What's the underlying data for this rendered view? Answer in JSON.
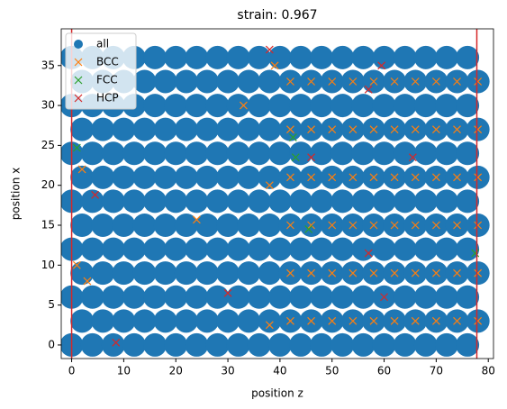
{
  "chart_data": {
    "type": "scatter",
    "title": "strain: 0.967",
    "xlabel": "position z",
    "ylabel": "position x",
    "xlim": [
      -2,
      81
    ],
    "ylim": [
      -1.7,
      39.6
    ],
    "xticks": [
      0,
      10,
      20,
      30,
      40,
      50,
      60,
      70,
      80
    ],
    "yticks": [
      0,
      5,
      10,
      15,
      20,
      25,
      30,
      35
    ],
    "vlines": [
      0,
      77.8
    ],
    "vline_color": "#d62728",
    "legend": "upper left",
    "series": [
      {
        "name": "all",
        "color": "#1f77b4",
        "marker": "o",
        "x": [
          0,
          4,
          8,
          12,
          16,
          20,
          24,
          28,
          32,
          36,
          40,
          44,
          48,
          52,
          56,
          60,
          64,
          68,
          72,
          76,
          2,
          6,
          10,
          14,
          18,
          22,
          26,
          30,
          34,
          38,
          42,
          46,
          50,
          54,
          58,
          62,
          66,
          70,
          74,
          78,
          0,
          4,
          8,
          12,
          16,
          20,
          24,
          28,
          32,
          36,
          40,
          44,
          48,
          52,
          56,
          60,
          64,
          68,
          72,
          76,
          2,
          6,
          10,
          14,
          18,
          22,
          26,
          30,
          34,
          38,
          42,
          46,
          50,
          54,
          58,
          62,
          66,
          70,
          74,
          78,
          0,
          4,
          8,
          12,
          16,
          20,
          24,
          28,
          32,
          36,
          40,
          44,
          48,
          52,
          56,
          60,
          64,
          68,
          72,
          76,
          2,
          6,
          10,
          14,
          18,
          22,
          26,
          30,
          34,
          38,
          42,
          46,
          50,
          54,
          58,
          62,
          66,
          70,
          74,
          78,
          0,
          4,
          8,
          12,
          16,
          20,
          24,
          28,
          32,
          36,
          40,
          44,
          48,
          52,
          56,
          60,
          64,
          68,
          72,
          76,
          2,
          6,
          10,
          14,
          18,
          22,
          26,
          30,
          34,
          38,
          42,
          46,
          50,
          54,
          58,
          62,
          66,
          70,
          74,
          78,
          0,
          4,
          8,
          12,
          16,
          20,
          24,
          28,
          32,
          36,
          40,
          44,
          48,
          52,
          56,
          60,
          64,
          68,
          72,
          76,
          2,
          6,
          10,
          14,
          18,
          22,
          26,
          30,
          34,
          38,
          42,
          46,
          50,
          54,
          58,
          62,
          66,
          70,
          74,
          78,
          0,
          4,
          8,
          12,
          16,
          20,
          24,
          28,
          32,
          36,
          40,
          44,
          48,
          52,
          56,
          60,
          64,
          68,
          72,
          76,
          2,
          6,
          10,
          14,
          18,
          22,
          26,
          30,
          34,
          38,
          42,
          46,
          50,
          54,
          58,
          62,
          66,
          70,
          74,
          78,
          0,
          4,
          8,
          12,
          16,
          20,
          24,
          28,
          32,
          36,
          40,
          44,
          48,
          52,
          56,
          60,
          64,
          68,
          72,
          76
        ],
        "y": [
          0,
          0,
          0,
          0,
          0,
          0,
          0,
          0,
          0,
          0,
          0,
          0,
          0,
          0,
          0,
          0,
          0,
          0,
          0,
          0,
          3,
          3,
          3,
          3,
          3,
          3,
          3,
          3,
          3,
          3,
          3,
          3,
          3,
          3,
          3,
          3,
          3,
          3,
          3,
          3,
          6,
          6,
          6,
          6,
          6,
          6,
          6,
          6,
          6,
          6,
          6,
          6,
          6,
          6,
          6,
          6,
          6,
          6,
          6,
          6,
          9,
          9,
          9,
          9,
          9,
          9,
          9,
          9,
          9,
          9,
          9,
          9,
          9,
          9,
          9,
          9,
          9,
          9,
          9,
          9,
          12,
          12,
          12,
          12,
          12,
          12,
          12,
          12,
          12,
          12,
          12,
          12,
          12,
          12,
          12,
          12,
          12,
          12,
          12,
          12,
          15,
          15,
          15,
          15,
          15,
          15,
          15,
          15,
          15,
          15,
          15,
          15,
          15,
          15,
          15,
          15,
          15,
          15,
          15,
          15,
          18,
          18,
          18,
          18,
          18,
          18,
          18,
          18,
          18,
          18,
          18,
          18,
          18,
          18,
          18,
          18,
          18,
          18,
          18,
          18,
          21,
          21,
          21,
          21,
          21,
          21,
          21,
          21,
          21,
          21,
          21,
          21,
          21,
          21,
          21,
          21,
          21,
          21,
          21,
          21,
          24,
          24,
          24,
          24,
          24,
          24,
          24,
          24,
          24,
          24,
          24,
          24,
          24,
          24,
          24,
          24,
          24,
          24,
          24,
          24,
          27,
          27,
          27,
          27,
          27,
          27,
          27,
          27,
          27,
          27,
          27,
          27,
          27,
          27,
          27,
          27,
          27,
          27,
          27,
          27,
          30,
          30,
          30,
          30,
          30,
          30,
          30,
          30,
          30,
          30,
          30,
          30,
          30,
          30,
          30,
          30,
          30,
          30,
          30,
          30,
          33,
          33,
          33,
          33,
          33,
          33,
          33,
          33,
          33,
          33,
          33,
          33,
          33,
          33,
          33,
          33,
          33,
          33,
          33,
          33,
          36,
          36,
          36,
          36,
          36,
          36,
          36,
          36,
          36,
          36,
          36,
          36,
          36,
          36,
          36,
          36,
          36,
          36,
          36,
          36
        ]
      },
      {
        "name": "BCC",
        "color": "#ff7f0e",
        "marker": "x",
        "x": [
          42,
          46,
          50,
          54,
          58,
          62,
          66,
          70,
          74,
          78,
          42,
          46,
          50,
          54,
          58,
          62,
          66,
          70,
          74,
          78,
          42,
          46,
          50,
          54,
          58,
          62,
          66,
          70,
          74,
          78,
          42,
          46,
          50,
          54,
          58,
          62,
          66,
          70,
          74,
          78,
          42,
          46,
          50,
          54,
          58,
          62,
          66,
          70,
          74,
          78,
          42,
          46,
          50,
          54,
          58,
          62,
          66,
          70,
          74,
          78,
          1,
          2,
          24,
          3,
          33,
          38,
          38,
          39
        ],
        "y": [
          3,
          3,
          3,
          3,
          3,
          3,
          3,
          3,
          3,
          3,
          9,
          9,
          9,
          9,
          9,
          9,
          9,
          9,
          9,
          9,
          15,
          15,
          15,
          15,
          15,
          15,
          15,
          15,
          15,
          15,
          21,
          21,
          21,
          21,
          21,
          21,
          21,
          21,
          21,
          21,
          27,
          27,
          27,
          27,
          27,
          27,
          27,
          27,
          27,
          27,
          33,
          33,
          33,
          33,
          33,
          33,
          33,
          33,
          33,
          33,
          10,
          22,
          15.7,
          8,
          30,
          2.5,
          20,
          35
        ]
      },
      {
        "name": "FCC",
        "color": "#2ca02c",
        "marker": "x",
        "x": [
          1,
          42.5,
          43,
          45.5,
          77.5
        ],
        "y": [
          24.7,
          26,
          23.5,
          14.5,
          11.5
        ]
      },
      {
        "name": "HCP",
        "color": "#d62728",
        "marker": "x",
        "x": [
          4.5,
          8.5,
          30,
          38,
          46,
          57,
          59.5,
          60,
          57,
          65.5
        ],
        "y": [
          18.8,
          0.3,
          6.5,
          37,
          23.5,
          32,
          35,
          6,
          11.5,
          23.5
        ]
      }
    ]
  }
}
